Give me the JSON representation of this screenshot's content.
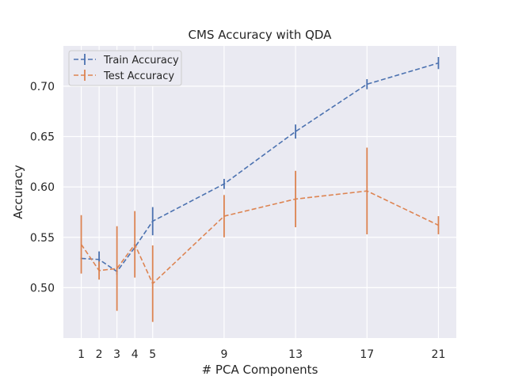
{
  "chart_data": {
    "type": "line",
    "title": "CMS Accuracy with QDA",
    "xlabel": "# PCA Components",
    "ylabel": "Accuracy",
    "x": [
      1,
      2,
      3,
      4,
      5,
      9,
      13,
      17,
      21
    ],
    "xlim": [
      -0.0,
      22.0
    ],
    "ylim": [
      0.45,
      0.74
    ],
    "yticks": [
      0.5,
      0.55,
      0.6,
      0.65,
      0.7
    ],
    "ytick_labels": [
      "0.50",
      "0.55",
      "0.60",
      "0.65",
      "0.70"
    ],
    "grid": true,
    "legend_position": "top-left",
    "series": [
      {
        "name": "Train Accuracy",
        "color": "#4c72b0",
        "values": [
          0.529,
          0.528,
          0.516,
          0.54,
          0.566,
          0.603,
          0.655,
          0.702,
          0.723
        ],
        "errors": [
          0.0,
          0.008,
          0.003,
          0.003,
          0.014,
          0.005,
          0.007,
          0.005,
          0.006
        ]
      },
      {
        "name": "Test Accuracy",
        "color": "#dd8452",
        "values": [
          0.543,
          0.517,
          0.519,
          0.543,
          0.504,
          0.571,
          0.588,
          0.596,
          0.562
        ],
        "errors": [
          0.029,
          0.009,
          0.042,
          0.033,
          0.038,
          0.021,
          0.028,
          0.043,
          0.009
        ]
      }
    ]
  }
}
